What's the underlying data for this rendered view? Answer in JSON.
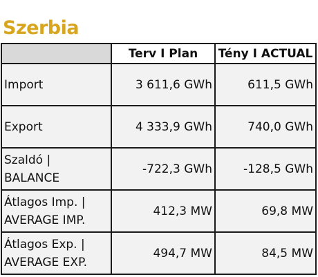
{
  "title": "Szerbia",
  "table": {
    "headers": [
      "",
      "Terv I Plan",
      "Tény I ACTUAL"
    ],
    "rows": [
      {
        "label_line1": "Import",
        "label_line2": "",
        "plan": "3 611,6 GWh",
        "actual": "611,5 GWh"
      },
      {
        "label_line1": "Export",
        "label_line2": "",
        "plan": "4 333,9 GWh",
        "actual": "740,0 GWh"
      },
      {
        "label_line1": "Szaldó |",
        "label_line2": "BALANCE",
        "plan": "-722,3 GWh",
        "actual": "-128,5 GWh"
      },
      {
        "label_line1": "Átlagos Imp. |",
        "label_line2": "AVERAGE IMP.",
        "plan": "412,3 MW",
        "actual": "69,8 MW"
      },
      {
        "label_line1": "Átlagos Exp. |",
        "label_line2": "AVERAGE EXP.",
        "plan": "494,7 MW",
        "actual": "84,5 MW"
      }
    ]
  }
}
